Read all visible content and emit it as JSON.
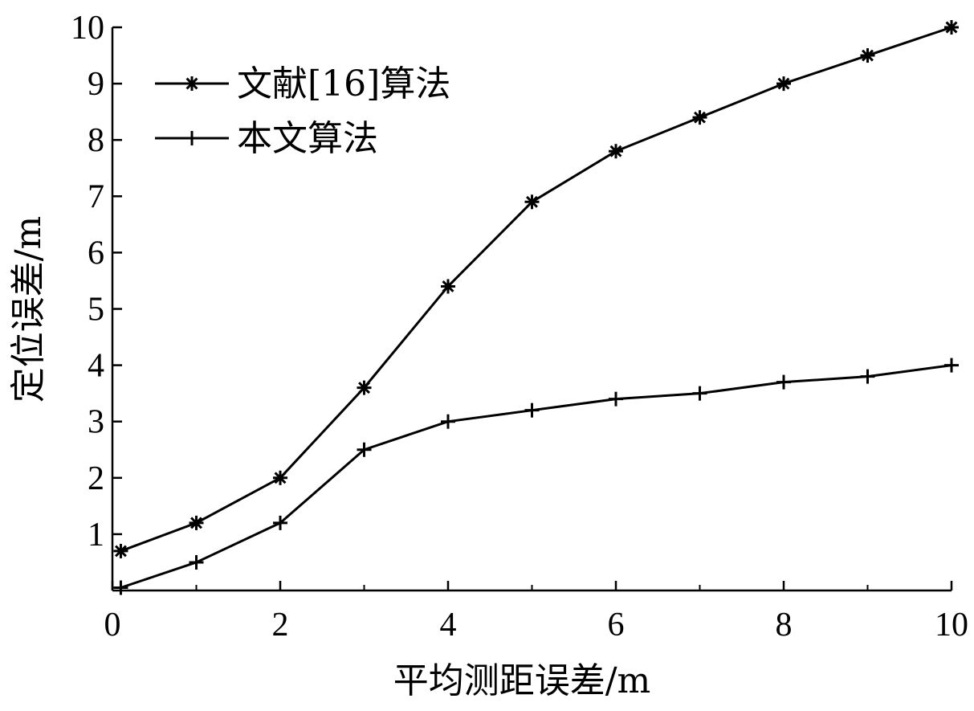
{
  "chart_data": {
    "type": "line",
    "xlabel": "平均测距误差/m",
    "ylabel": "定位误差/m",
    "xlim": [
      0,
      10
    ],
    "ylim": [
      0,
      10
    ],
    "x_ticks": [
      "0",
      "2",
      "4",
      "6",
      "8",
      "10"
    ],
    "y_ticks": [
      "1",
      "2",
      "3",
      "4",
      "5",
      "6",
      "7",
      "8",
      "9",
      "10"
    ],
    "legend_position": "top-left",
    "grid": false,
    "series": [
      {
        "name": "文献[16]算法",
        "marker": "asterisk",
        "x": [
          0.1,
          1,
          2,
          3,
          4,
          5,
          6,
          7,
          8,
          9,
          10
        ],
        "y": [
          0.7,
          1.2,
          2.0,
          3.6,
          5.4,
          6.9,
          7.8,
          8.4,
          9.0,
          9.5,
          10.0
        ]
      },
      {
        "name": "本文算法",
        "marker": "plus",
        "x": [
          0.1,
          1,
          2,
          3,
          4,
          5,
          6,
          7,
          8,
          9,
          10
        ],
        "y": [
          0.05,
          0.5,
          1.2,
          2.5,
          3.0,
          3.2,
          3.4,
          3.5,
          3.7,
          3.8,
          4.0
        ]
      }
    ]
  }
}
